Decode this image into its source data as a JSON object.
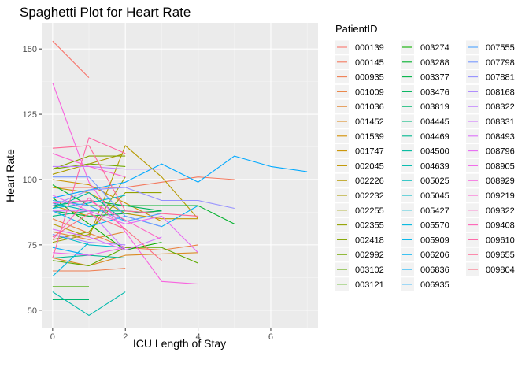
{
  "chart_data": {
    "type": "line",
    "title": "Spaghetti Plot for Heart Rate",
    "xlabel": "ICU Length of Stay",
    "ylabel": "Heart Rate",
    "xlim": [
      -0.3,
      7.3
    ],
    "ylim": [
      43,
      160
    ],
    "x_ticks": [
      "0",
      "2",
      "4",
      "6"
    ],
    "y_ticks": [
      "50",
      "75",
      "100",
      "125",
      "150"
    ],
    "grid": true,
    "legend_title": "PatientID",
    "legend_placement": "right",
    "series": [
      {
        "name": "000139",
        "color": "#F8766D",
        "x": [
          0,
          1
        ],
        "y": [
          153,
          139
        ]
      },
      {
        "name": "000145",
        "color": "#F47A5F",
        "x": [
          0,
          2,
          4,
          5
        ],
        "y": [
          97,
          97,
          101,
          100
        ]
      },
      {
        "name": "000935",
        "color": "#EF7E52",
        "x": [
          0,
          1,
          2
        ],
        "y": [
          65,
          65,
          66
        ]
      },
      {
        "name": "001009",
        "color": "#E98343",
        "x": [
          0,
          2,
          3,
          4
        ],
        "y": [
          85,
          74,
          73,
          75
        ]
      },
      {
        "name": "001036",
        "color": "#E28734",
        "x": [
          0,
          1,
          2
        ],
        "y": [
          80,
          77,
          80
        ]
      },
      {
        "name": "001452",
        "color": "#DB8B23",
        "x": [
          0,
          1,
          2,
          4
        ],
        "y": [
          70,
          67,
          71,
          72
        ]
      },
      {
        "name": "001539",
        "color": "#D38E00",
        "x": [
          0,
          1
        ],
        "y": [
          90,
          86
        ]
      },
      {
        "name": "001747",
        "color": "#CA9200",
        "x": [
          0,
          1,
          3
        ],
        "y": [
          100,
          98,
          84
        ]
      },
      {
        "name": "002045",
        "color": "#C09500",
        "x": [
          0,
          1,
          2,
          3,
          4
        ],
        "y": [
          97,
          95,
          87,
          85,
          85
        ]
      },
      {
        "name": "002226",
        "color": "#B69900",
        "x": [
          0,
          1,
          2,
          3,
          4
        ],
        "y": [
          83,
          78,
          113,
          101,
          85
        ]
      },
      {
        "name": "002232",
        "color": "#AB9C00",
        "x": [
          0,
          1,
          2
        ],
        "y": [
          102,
          106,
          110
        ]
      },
      {
        "name": "002255",
        "color": "#9F9F00",
        "x": [
          0,
          1,
          2
        ],
        "y": [
          76,
          79,
          101
        ]
      },
      {
        "name": "002355",
        "color": "#92A200",
        "x": [
          0,
          1,
          2,
          3
        ],
        "y": [
          77,
          80,
          95,
          95
        ]
      },
      {
        "name": "002418",
        "color": "#84A500",
        "x": [
          0,
          1,
          2
        ],
        "y": [
          104,
          109,
          109
        ]
      },
      {
        "name": "002992",
        "color": "#73A800",
        "x": [
          0,
          1,
          2
        ],
        "y": [
          104,
          106,
          105
        ]
      },
      {
        "name": "003102",
        "color": "#5FAA00",
        "x": [
          0,
          1,
          2,
          3,
          4
        ],
        "y": [
          69,
          67,
          74,
          74,
          68
        ]
      },
      {
        "name": "003121",
        "color": "#45AD00",
        "x": [
          0,
          1
        ],
        "y": [
          59,
          59
        ]
      },
      {
        "name": "003274",
        "color": "#0CAF00",
        "x": [
          0,
          2,
          3
        ],
        "y": [
          93,
          73,
          76
        ]
      },
      {
        "name": "003288",
        "color": "#00B12C",
        "x": [
          0,
          1,
          4,
          5
        ],
        "y": [
          98,
          90,
          90,
          83
        ]
      },
      {
        "name": "003377",
        "color": "#00B347",
        "x": [
          0,
          1,
          2,
          3
        ],
        "y": [
          88,
          86,
          87,
          88
        ]
      },
      {
        "name": "003476",
        "color": "#00B45C",
        "x": [
          0,
          1,
          3
        ],
        "y": [
          90,
          92,
          88
        ]
      },
      {
        "name": "003819",
        "color": "#00B66E",
        "x": [
          0,
          1
        ],
        "y": [
          54,
          54
        ]
      },
      {
        "name": "004445",
        "color": "#00B77F",
        "x": [
          0,
          1,
          2,
          3
        ],
        "y": [
          86,
          88,
          88,
          87
        ]
      },
      {
        "name": "004469",
        "color": "#00B88F",
        "x": [
          0,
          1,
          2,
          3
        ],
        "y": [
          70,
          71,
          70,
          70
        ]
      },
      {
        "name": "004500",
        "color": "#00B99E",
        "x": [
          0,
          1,
          2
        ],
        "y": [
          89,
          95,
          84
        ]
      },
      {
        "name": "004639",
        "color": "#00BAAC",
        "x": [
          0,
          1,
          2
        ],
        "y": [
          57,
          48,
          57
        ]
      },
      {
        "name": "005025",
        "color": "#00BABA",
        "x": [
          0,
          1
        ],
        "y": [
          91,
          88
        ]
      },
      {
        "name": "005045",
        "color": "#00BAC7",
        "x": [
          0,
          1,
          2
        ],
        "y": [
          79,
          75,
          74
        ]
      },
      {
        "name": "005427",
        "color": "#00B9D3",
        "x": [
          0,
          1,
          2
        ],
        "y": [
          89,
          91,
          94
        ]
      },
      {
        "name": "005570",
        "color": "#00B7DF",
        "x": [
          0,
          1
        ],
        "y": [
          63,
          76
        ]
      },
      {
        "name": "005909",
        "color": "#00B5E9",
        "x": [
          0,
          1
        ],
        "y": [
          73,
          73
        ]
      },
      {
        "name": "006206",
        "color": "#00B2F3",
        "x": [
          0,
          1,
          2,
          3,
          4
        ],
        "y": [
          88,
          82,
          86,
          82,
          90
        ]
      },
      {
        "name": "006836",
        "color": "#00AEFA",
        "x": [
          0,
          1
        ],
        "y": [
          74,
          71
        ]
      },
      {
        "name": "006935",
        "color": "#00A9FF",
        "x": [
          0,
          1,
          2,
          3,
          4,
          5,
          6,
          7
        ],
        "y": [
          93,
          96,
          99,
          106,
          99,
          109,
          105,
          103
        ]
      },
      {
        "name": "007555",
        "color": "#4AA1FF",
        "x": [
          0,
          1,
          2,
          3
        ],
        "y": [
          92,
          90,
          84,
          87
        ]
      },
      {
        "name": "007798",
        "color": "#7799FF",
        "x": [
          0,
          1,
          2,
          3
        ],
        "y": [
          101,
          101,
          86,
          82
        ]
      },
      {
        "name": "007881",
        "color": "#9590FF",
        "x": [
          0,
          1,
          2,
          3,
          4,
          5
        ],
        "y": [
          90,
          96,
          97,
          92,
          92,
          89
        ]
      },
      {
        "name": "008168",
        "color": "#AC88FF",
        "x": [
          0,
          1,
          2
        ],
        "y": [
          79,
          76,
          75
        ]
      },
      {
        "name": "008322",
        "color": "#BF80FF",
        "x": [
          0,
          1,
          2,
          3
        ],
        "y": [
          105,
          105,
          104,
          104
        ]
      },
      {
        "name": "008331",
        "color": "#CF78FF",
        "x": [
          0,
          1,
          2,
          3
        ],
        "y": [
          88,
          88,
          73,
          78
        ]
      },
      {
        "name": "008493",
        "color": "#DC71FA",
        "x": [
          0,
          1,
          2
        ],
        "y": [
          81,
          78,
          73
        ]
      },
      {
        "name": "008796",
        "color": "#E86BF3",
        "x": [
          0,
          1,
          2,
          3,
          4
        ],
        "y": [
          94,
          88,
          83,
          86,
          72
        ]
      },
      {
        "name": "008905",
        "color": "#F166EA",
        "x": [
          0,
          1,
          2
        ],
        "y": [
          72,
          71,
          74
        ]
      },
      {
        "name": "008929",
        "color": "#F863DF",
        "x": [
          0,
          1,
          2,
          3,
          4
        ],
        "y": [
          137,
          99,
          80,
          61,
          60
        ]
      },
      {
        "name": "009219",
        "color": "#FC61D3",
        "x": [
          0,
          1,
          2
        ],
        "y": [
          110,
          105,
          101
        ]
      },
      {
        "name": "009322",
        "color": "#FF61C5",
        "x": [
          0,
          1,
          3
        ],
        "y": [
          91,
          92,
          77
        ]
      },
      {
        "name": "009408",
        "color": "#FF62B6",
        "x": [
          0,
          1,
          2
        ],
        "y": [
          77,
          93,
          81
        ]
      },
      {
        "name": "009610",
        "color": "#FF65A6",
        "x": [
          0,
          1,
          2
        ],
        "y": [
          70,
          116,
          110
        ]
      },
      {
        "name": "009655",
        "color": "#FF6895",
        "x": [
          0,
          1,
          2,
          4
        ],
        "y": [
          112,
          113,
          88,
          86
        ]
      },
      {
        "name": "009804",
        "color": "#FB6C82",
        "x": [
          0,
          1,
          2,
          3
        ],
        "y": [
          78,
          87,
          81,
          69
        ]
      }
    ]
  }
}
